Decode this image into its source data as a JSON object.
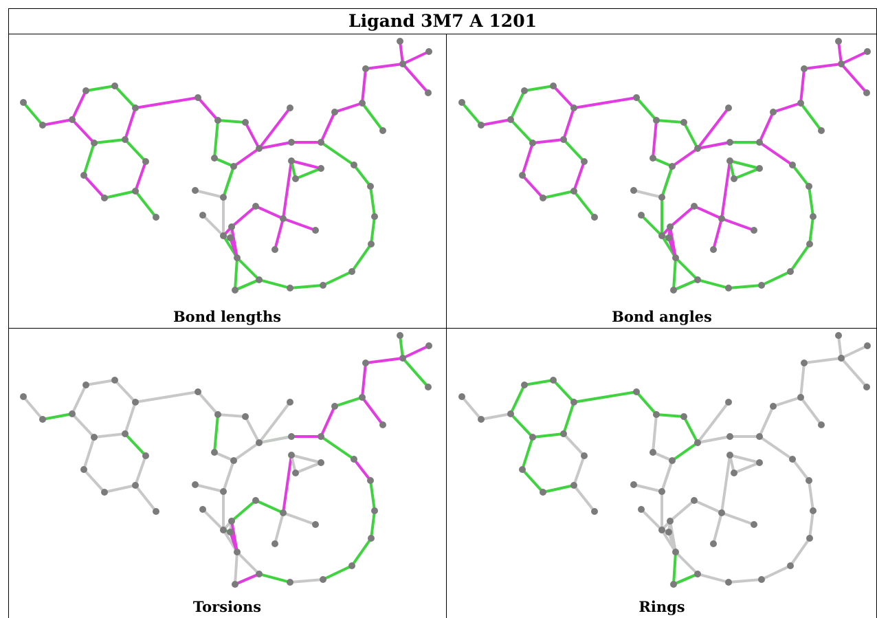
{
  "title": "Ligand 3M7 A 1201",
  "colors": {
    "green": "#3fd33f",
    "magenta": "#e23be2",
    "gray": "#c8c8c8",
    "atom": "#7b7b7b"
  },
  "panels": [
    {
      "caption": "Bond lengths",
      "bonds": [
        "g",
        "m",
        "m",
        "g",
        "g",
        "m",
        "m",
        "g",
        "g",
        "m",
        "g",
        "m",
        "g",
        "g",
        "m",
        "m",
        "g",
        "m",
        "m",
        "g",
        "g",
        "m",
        "g",
        "m",
        "m",
        "m",
        "m",
        "m",
        "m",
        "m",
        "m",
        "g",
        "g",
        "g",
        "g",
        "g",
        "g",
        "g",
        "g",
        "g",
        "g",
        "g",
        "g",
        "g",
        "g",
        "g",
        "g",
        "g",
        "r",
        "r",
        "r",
        "r",
        "r",
        "m",
        "m",
        "m",
        "g",
        "g",
        "m",
        "m",
        "m",
        "m",
        "m",
        "m",
        "m",
        "m"
      ]
    },
    {
      "caption": "Bond angles",
      "bonds": [
        "g",
        "m",
        "g",
        "g",
        "m",
        "m",
        "g",
        "m",
        "m",
        "m",
        "g",
        "m",
        "g",
        "g",
        "m",
        "g",
        "g",
        "g",
        "m",
        "g",
        "m",
        "m",
        "g",
        "g",
        "m",
        "m",
        "m",
        "m",
        "m",
        "m",
        "m",
        "g",
        "m",
        "g",
        "g",
        "g",
        "g",
        "g",
        "g",
        "g",
        "g",
        "g",
        "m",
        "m",
        "g",
        "g",
        "m",
        "g",
        "r",
        "g",
        "g",
        "g",
        "m",
        "m",
        "m",
        "m",
        "g",
        "g",
        "g",
        "m",
        "m",
        "g",
        "m",
        "m",
        "m",
        "m"
      ]
    },
    {
      "caption": "Torsions",
      "bonds": [
        "r",
        "g",
        "r",
        "r",
        "r",
        "r",
        "r",
        "r",
        "r",
        "r",
        "r",
        "r",
        "g",
        "r",
        "r",
        "r",
        "r",
        "r",
        "r",
        "r",
        "g",
        "r",
        "g",
        "m",
        "m",
        "g",
        "m",
        "m",
        "g",
        "m",
        "g",
        "m",
        "g",
        "m",
        "g",
        "g",
        "g",
        "g",
        "r",
        "g",
        "r",
        "r",
        "r",
        "r",
        "r",
        "r",
        "r",
        "m",
        "r",
        "r",
        "r",
        "g",
        "r",
        "g",
        "g",
        "m",
        "r",
        "r",
        "r",
        "r",
        "r",
        "m",
        "m",
        "m",
        "r",
        "r"
      ]
    },
    {
      "caption": "Rings",
      "bonds": [
        "r",
        "r",
        "g",
        "g",
        "g",
        "g",
        "g",
        "g",
        "g",
        "g",
        "g",
        "r",
        "r",
        "r",
        "g",
        "g",
        "g",
        "g",
        "g",
        "r",
        "r",
        "r",
        "r",
        "r",
        "r",
        "r",
        "r",
        "r",
        "r",
        "r",
        "r",
        "r",
        "r",
        "r",
        "r",
        "r",
        "r",
        "r",
        "r",
        "r",
        "r",
        "r",
        "r",
        "r",
        "r",
        "g",
        "g",
        "g",
        "r",
        "r",
        "r",
        "r",
        "r",
        "r",
        "r",
        "r",
        "r",
        "r",
        "r",
        "r",
        "r",
        "r",
        "r",
        "r",
        "r",
        "r"
      ]
    }
  ]
}
